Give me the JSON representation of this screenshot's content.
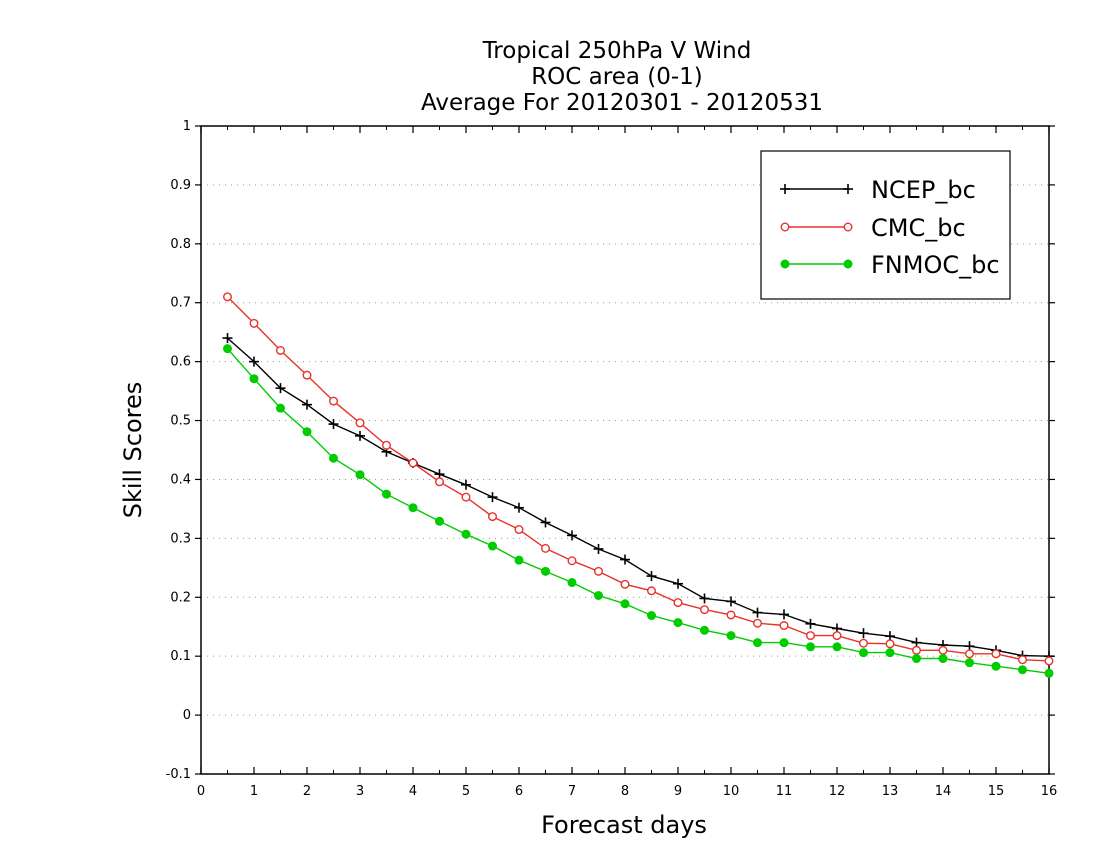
{
  "chart_data": {
    "type": "line",
    "title": [
      "Tropical 250hPa V Wind",
      "ROC area (0-1)",
      "Average For 20120301 - 20120531"
    ],
    "xlabel": "Forecast days",
    "ylabel": "Skill Scores",
    "xlim": [
      0,
      16
    ],
    "ylim": [
      -0.1,
      1
    ],
    "xticks": [
      "0",
      "1",
      "2",
      "3",
      "4",
      "5",
      "6",
      "7",
      "8",
      "9",
      "10",
      "11",
      "12",
      "13",
      "14",
      "15",
      "16"
    ],
    "yticks": [
      "-0.1",
      "0",
      "0.1",
      "0.2",
      "0.3",
      "0.4",
      "0.5",
      "0.6",
      "0.7",
      "0.8",
      "0.9",
      "1"
    ],
    "grid": "horizontal-dotted",
    "legend_position": "top-right",
    "x": [
      0.5,
      1,
      1.5,
      2,
      2.5,
      3,
      3.5,
      4,
      4.5,
      5,
      5.5,
      6,
      6.5,
      7,
      7.5,
      8,
      8.5,
      9,
      9.5,
      10,
      10.5,
      11,
      11.5,
      12,
      12.5,
      13,
      13.5,
      14,
      14.5,
      15,
      15.5,
      16
    ],
    "series": [
      {
        "name": "NCEP_bc",
        "color": "#000000",
        "marker": "plus",
        "values": [
          0.64,
          0.6,
          0.555,
          0.527,
          0.494,
          0.474,
          0.447,
          0.428,
          0.409,
          0.391,
          0.37,
          0.352,
          0.327,
          0.305,
          0.282,
          0.264,
          0.236,
          0.223,
          0.198,
          0.193,
          0.174,
          0.171,
          0.155,
          0.147,
          0.139,
          0.134,
          0.123,
          0.119,
          0.117,
          0.11,
          0.101,
          0.1
        ]
      },
      {
        "name": "CMC_bc",
        "color": "#e8322a",
        "marker": "open-circle",
        "values": [
          0.71,
          0.665,
          0.619,
          0.577,
          0.533,
          0.496,
          0.458,
          0.428,
          0.396,
          0.37,
          0.337,
          0.315,
          0.283,
          0.262,
          0.244,
          0.222,
          0.211,
          0.191,
          0.179,
          0.17,
          0.156,
          0.152,
          0.135,
          0.135,
          0.122,
          0.121,
          0.11,
          0.11,
          0.104,
          0.104,
          0.094,
          0.092
        ]
      },
      {
        "name": "FNMOC_bc",
        "color": "#00cc00",
        "marker": "filled-circle",
        "values": [
          0.622,
          0.571,
          0.521,
          0.481,
          0.436,
          0.408,
          0.375,
          0.352,
          0.329,
          0.307,
          0.287,
          0.263,
          0.244,
          0.225,
          0.203,
          0.189,
          0.169,
          0.157,
          0.144,
          0.135,
          0.123,
          0.123,
          0.116,
          0.116,
          0.106,
          0.106,
          0.096,
          0.096,
          0.089,
          0.083,
          0.077,
          0.071
        ]
      }
    ]
  }
}
